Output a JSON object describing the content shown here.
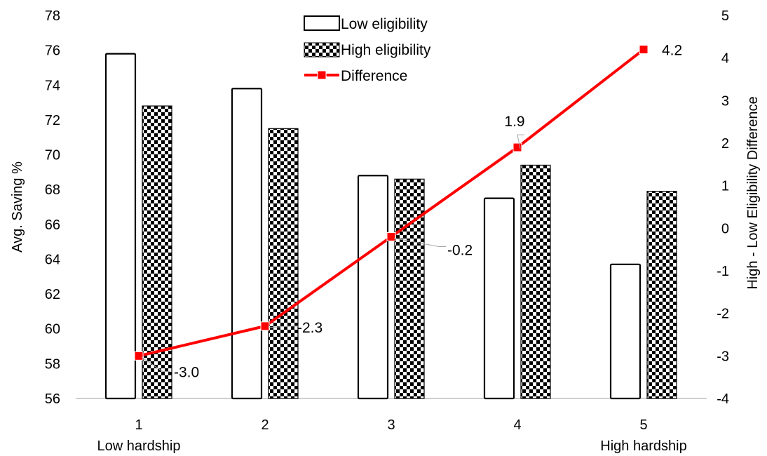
{
  "chart_data": {
    "type": "bar",
    "categories": [
      "1",
      "2",
      "3",
      "4",
      "5"
    ],
    "category_sublabels": [
      "Low hardship",
      "",
      "",
      "",
      "High hardship"
    ],
    "series": [
      {
        "name": "Low eligibility",
        "type": "bar",
        "axis": "left",
        "values": [
          75.8,
          73.8,
          68.8,
          67.5,
          63.7
        ],
        "pattern": "none"
      },
      {
        "name": "High eligibility",
        "type": "bar",
        "axis": "left",
        "values": [
          72.8,
          71.5,
          68.6,
          69.4,
          67.9
        ],
        "pattern": "checkerboard"
      },
      {
        "name": "Difference",
        "type": "line",
        "axis": "right",
        "values": [
          -3.0,
          -2.3,
          -0.2,
          1.9,
          4.2
        ],
        "labels": [
          "-3.0",
          "-2.3",
          "-0.2",
          "1.9",
          "4.2"
        ],
        "color": "#ff0000",
        "marker": "square"
      }
    ],
    "ylabel": "Avg. Saving %",
    "y2label": "High - Low Eligibility Difference",
    "ylim": [
      56,
      78
    ],
    "y2lim": [
      -4,
      5
    ],
    "yticks": [
      56,
      58,
      60,
      62,
      64,
      66,
      68,
      70,
      72,
      74,
      76,
      78
    ],
    "y2ticks": [
      -4,
      -3,
      -2,
      -1,
      0,
      1,
      2,
      3,
      4,
      5
    ],
    "grid": false,
    "legend_position": "top-center"
  }
}
